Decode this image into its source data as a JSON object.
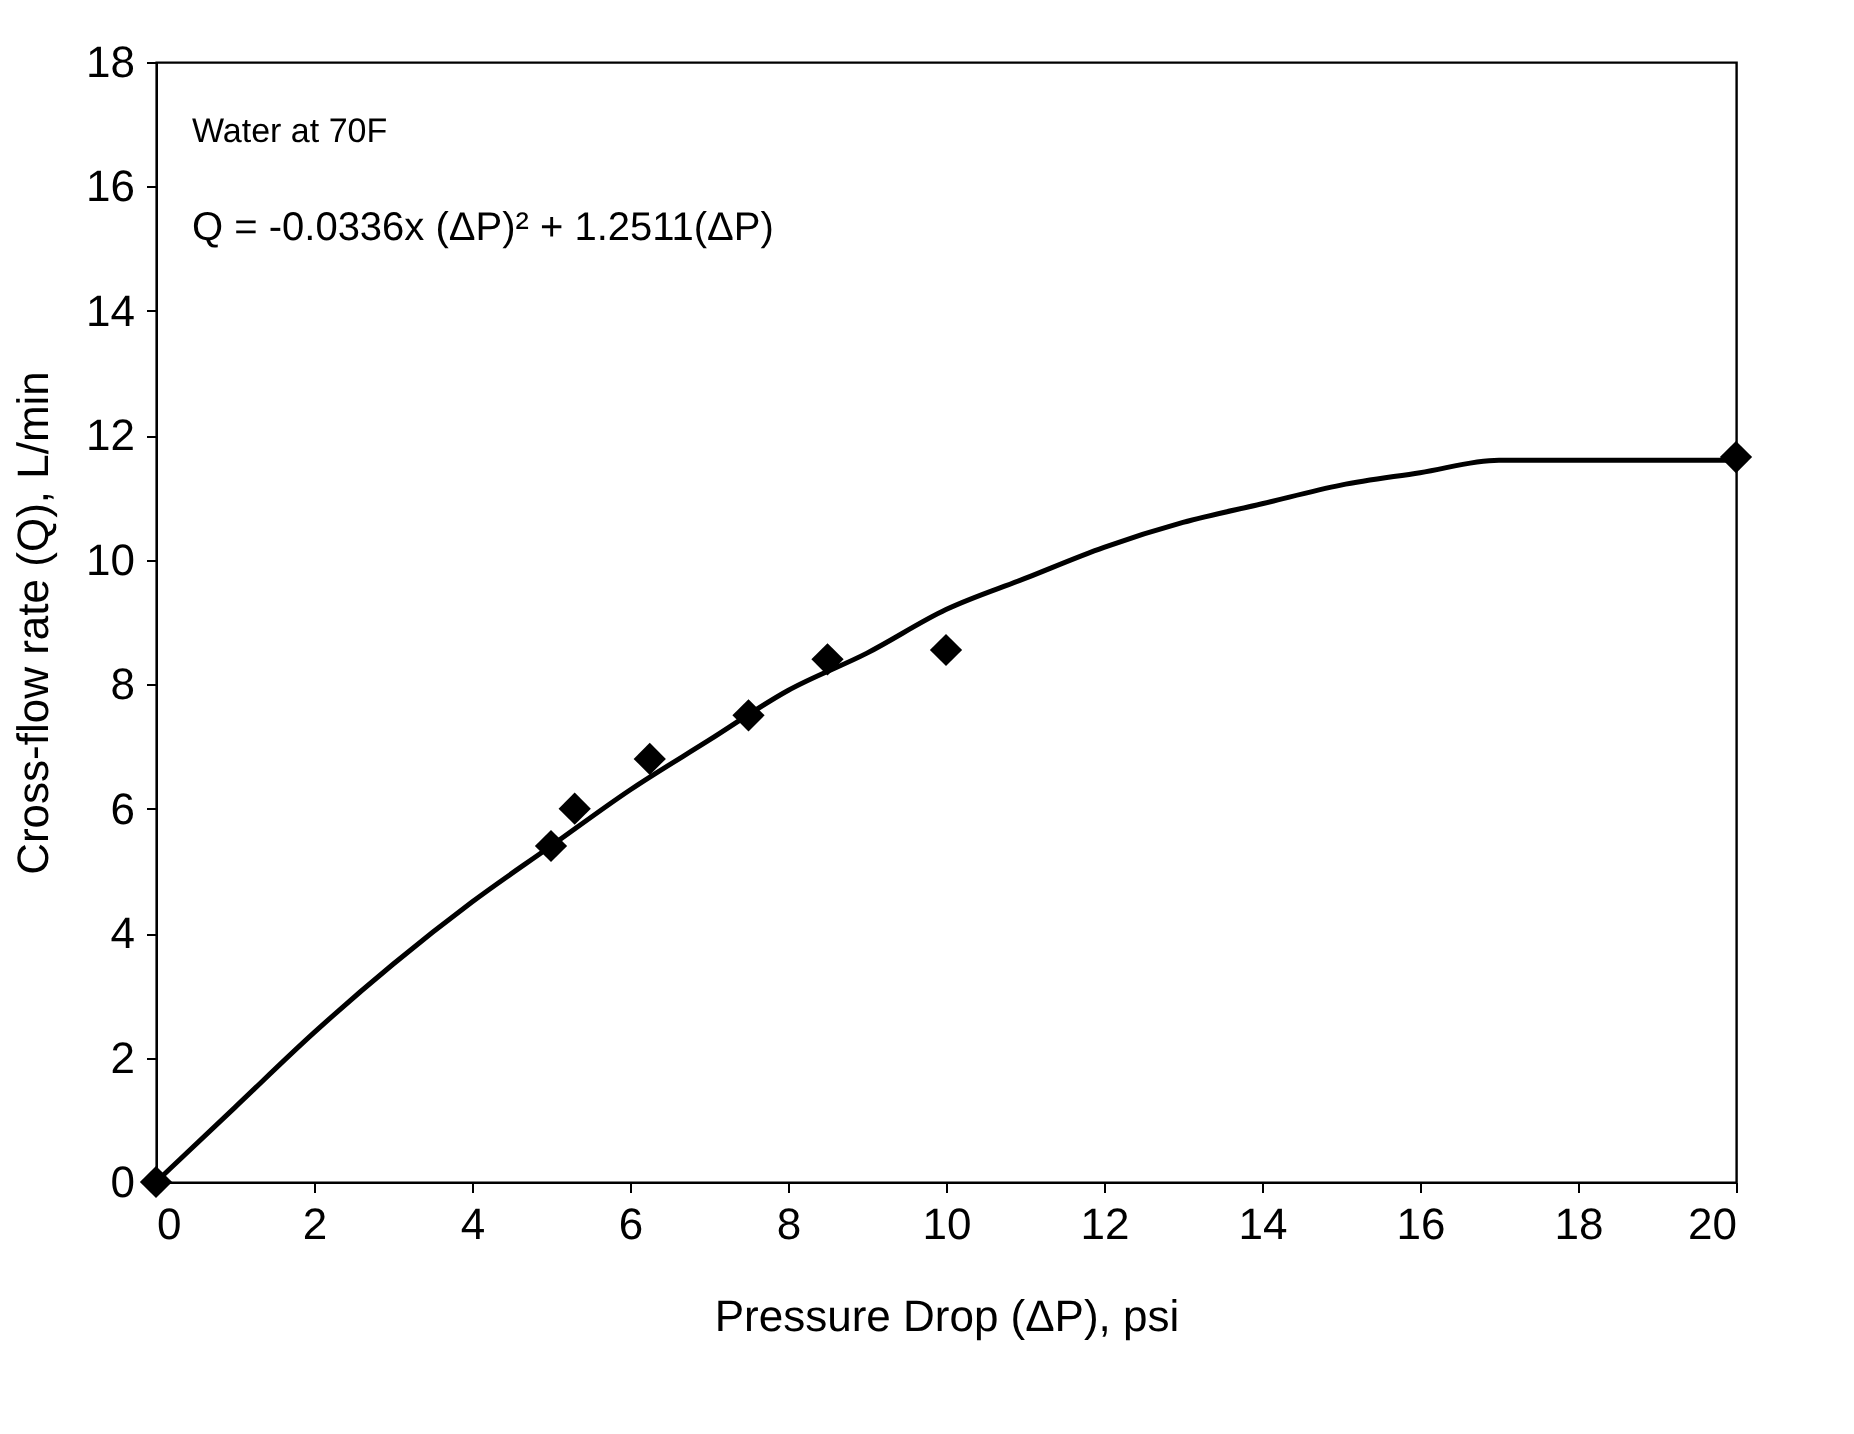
{
  "chart_data": {
    "type": "scatter",
    "xlabel": "Pressure Drop (ΔP), psi",
    "ylabel": "Cross-flow rate (Q), L/min",
    "annotations": [
      "Water at 70F",
      "Q = -0.0336x (ΔP)² + 1.2511(ΔP)"
    ],
    "grid": false,
    "xlim": [
      0,
      20
    ],
    "xticks": [
      0,
      2,
      4,
      6,
      8,
      10,
      12,
      14,
      16,
      18,
      20
    ],
    "ylim": [
      0,
      18
    ],
    "yticks": [
      0,
      2,
      4,
      6,
      8,
      10,
      12,
      14,
      16,
      18
    ],
    "series": [
      {
        "marker": "diamond",
        "color": "#000000",
        "x": [
          0,
          5,
          5.3,
          6.25,
          7.5,
          8.5,
          10,
          20
        ],
        "values": [
          0,
          5.4,
          6.0,
          6.8,
          7.5,
          8.4,
          8.55,
          11.65
        ]
      },
      {
        "type": "line",
        "color": "#000000",
        "line_style": "solid",
        "x": [
          0,
          1,
          2,
          3,
          4,
          5,
          6,
          7,
          8,
          9,
          10,
          11,
          12,
          13,
          14,
          15,
          16,
          17,
          18,
          19,
          20
        ],
        "values": [
          0,
          1.2,
          2.4,
          3.5,
          4.5,
          5.4,
          6.3,
          7.1,
          7.9,
          8.5,
          9.2,
          9.7,
          10.2,
          10.6,
          10.9,
          11.2,
          11.4,
          11.6,
          11.6,
          11.6,
          11.6
        ]
      }
    ]
  }
}
